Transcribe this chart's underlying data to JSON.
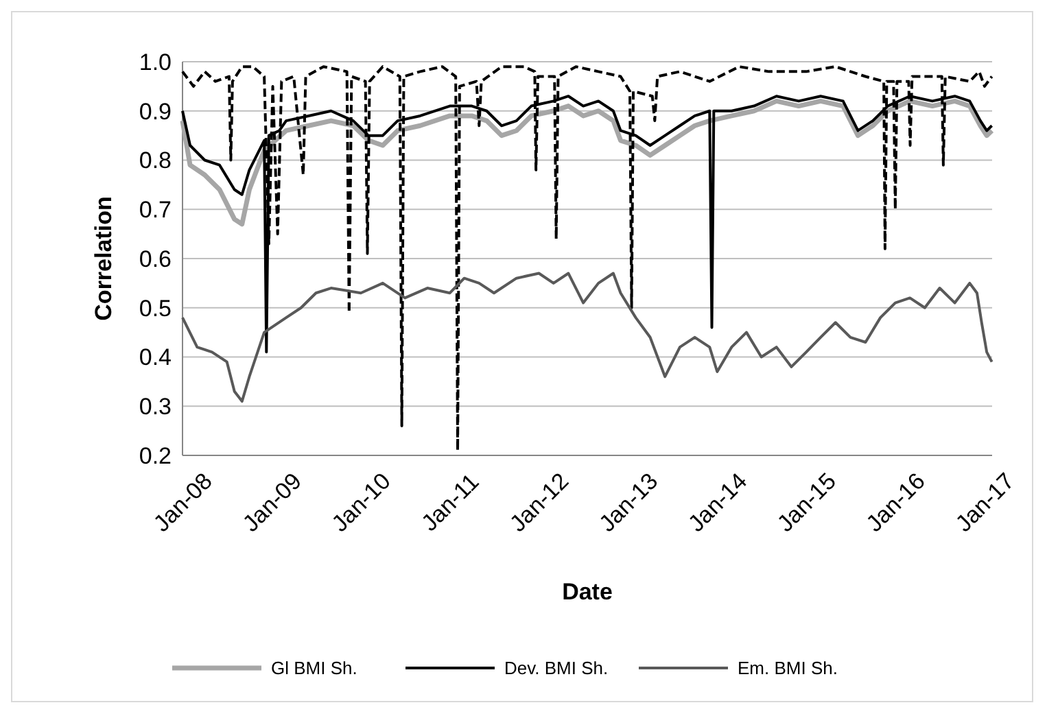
{
  "chart_data": {
    "type": "line",
    "xlabel": "Date",
    "ylabel": "Correlation",
    "xlim": [
      "2008-01-01",
      "2017-02-01"
    ],
    "ylim": [
      0.2,
      1.0
    ],
    "xticks": [
      {
        "value": "2008-01-01",
        "label": "Jan-08"
      },
      {
        "value": "2009-01-01",
        "label": "Jan-09"
      },
      {
        "value": "2010-01-01",
        "label": "Jan-10"
      },
      {
        "value": "2011-01-01",
        "label": "Jan-11"
      },
      {
        "value": "2012-01-01",
        "label": "Jan-12"
      },
      {
        "value": "2013-01-01",
        "label": "Jan-13"
      },
      {
        "value": "2014-01-01",
        "label": "Jan-14"
      },
      {
        "value": "2015-01-01",
        "label": "Jan-15"
      },
      {
        "value": "2016-01-01",
        "label": "Jan-16"
      },
      {
        "value": "2017-01-01",
        "label": "Jan-17"
      }
    ],
    "yticks": [
      {
        "value": 0.2,
        "label": "0.2"
      },
      {
        "value": 0.3,
        "label": "0.3"
      },
      {
        "value": 0.4,
        "label": "0.4"
      },
      {
        "value": 0.5,
        "label": "0.5"
      },
      {
        "value": 0.6,
        "label": "0.6"
      },
      {
        "value": 0.7,
        "label": "0.7"
      },
      {
        "value": 0.8,
        "label": "0.8"
      },
      {
        "value": 0.9,
        "label": "0.9"
      },
      {
        "value": 1.0,
        "label": "1.0"
      }
    ],
    "grid": "y",
    "legend": "bottom",
    "marker": "none",
    "series": [
      {
        "name": "Gl BMI Sh.",
        "color": "#a6a6a6",
        "line_style": "solid",
        "x": [
          "2008-01-01",
          "2008-02-01",
          "2008-04-01",
          "2008-06-01",
          "2008-08-01",
          "2008-09-01",
          "2008-10-01",
          "2008-12-01",
          "2009-03-01",
          "2009-06-01",
          "2009-09-01",
          "2009-12-01",
          "2010-02-01",
          "2010-04-01",
          "2010-06-01",
          "2010-09-01",
          "2011-01-01",
          "2011-04-01",
          "2011-06-01",
          "2011-08-01",
          "2011-10-01",
          "2011-12-01",
          "2012-03-01",
          "2012-05-01",
          "2012-07-01",
          "2012-09-01",
          "2012-11-01",
          "2012-12-01",
          "2013-02-01",
          "2013-04-01",
          "2013-06-01",
          "2013-08-01",
          "2013-10-01",
          "2013-12-01",
          "2014-03-01",
          "2014-06-01",
          "2014-09-01",
          "2014-12-01",
          "2015-03-01",
          "2015-06-01",
          "2015-08-01",
          "2015-10-01",
          "2015-12-01",
          "2016-03-01",
          "2016-06-01",
          "2016-09-01",
          "2016-11-01",
          "2016-12-15",
          "2017-01-10",
          "2017-01-31"
        ],
        "values": [
          0.88,
          0.79,
          0.77,
          0.74,
          0.68,
          0.67,
          0.74,
          0.82,
          0.86,
          0.87,
          0.88,
          0.87,
          0.84,
          0.83,
          0.86,
          0.87,
          0.89,
          0.89,
          0.88,
          0.85,
          0.86,
          0.89,
          0.9,
          0.91,
          0.89,
          0.9,
          0.88,
          0.84,
          0.83,
          0.81,
          0.83,
          0.85,
          0.87,
          0.88,
          0.89,
          0.9,
          0.92,
          0.91,
          0.92,
          0.91,
          0.85,
          0.87,
          0.9,
          0.92,
          0.91,
          0.92,
          0.91,
          0.87,
          0.85,
          0.86
        ]
      },
      {
        "color": "#000000",
        "line_style": "dashed",
        "x": [
          "2008-01-01",
          "2008-02-15",
          "2008-04-01",
          "2008-05-15",
          "2008-07-10",
          "2008-07-17",
          "2008-07-24",
          "2008-09-01",
          "2008-10-15",
          "2008-12-01",
          "2008-12-20",
          "2009-01-05",
          "2009-01-25",
          "2009-02-10",
          "2009-04-01",
          "2009-05-10",
          "2009-05-20",
          "2009-08-01",
          "2009-11-05",
          "2009-11-14",
          "2009-11-24",
          "2010-01-20",
          "2010-01-28",
          "2010-02-06",
          "2010-04-01",
          "2010-06-10",
          "2010-06-18",
          "2010-06-26",
          "2010-09-01",
          "2010-12-01",
          "2011-01-25",
          "2011-02-02",
          "2011-02-10",
          "2011-04-20",
          "2011-05-01",
          "2011-05-10",
          "2011-08-01",
          "2011-11-01",
          "2011-12-15",
          "2011-12-20",
          "2011-12-28",
          "2012-03-05",
          "2012-03-12",
          "2012-03-20",
          "2012-06-01",
          "2012-09-01",
          "2012-12-01",
          "2013-01-08",
          "2013-01-15",
          "2013-01-22",
          "2013-04-10",
          "2013-04-20",
          "2013-05-01",
          "2013-08-01",
          "2013-12-01",
          "2014-04-01",
          "2014-08-01",
          "2015-01-01",
          "2015-05-01",
          "2015-09-01",
          "2015-11-15",
          "2015-11-20",
          "2015-11-27",
          "2015-12-25",
          "2016-01-01",
          "2016-01-08",
          "2016-02-25",
          "2016-03-02",
          "2016-03-10",
          "2016-07-10",
          "2016-07-16",
          "2016-07-24",
          "2016-11-01",
          "2016-12-10",
          "2017-01-01",
          "2017-01-31"
        ],
        "values": [
          0.98,
          0.95,
          0.98,
          0.96,
          0.97,
          0.8,
          0.96,
          0.99,
          0.99,
          0.97,
          0.63,
          0.95,
          0.65,
          0.96,
          0.97,
          0.77,
          0.97,
          0.99,
          0.98,
          0.49,
          0.97,
          0.96,
          0.61,
          0.96,
          0.99,
          0.97,
          0.26,
          0.97,
          0.98,
          0.99,
          0.97,
          0.21,
          0.95,
          0.96,
          0.87,
          0.96,
          0.99,
          0.99,
          0.98,
          0.78,
          0.97,
          0.97,
          0.64,
          0.97,
          0.99,
          0.98,
          0.97,
          0.94,
          0.5,
          0.94,
          0.93,
          0.88,
          0.97,
          0.98,
          0.96,
          0.99,
          0.98,
          0.98,
          0.99,
          0.97,
          0.96,
          0.62,
          0.96,
          0.96,
          0.7,
          0.96,
          0.96,
          0.83,
          0.97,
          0.97,
          0.79,
          0.97,
          0.96,
          0.98,
          0.95,
          0.97
        ]
      },
      {
        "name": "Dev. BMI Sh.",
        "color": "#000000",
        "line_style": "solid",
        "x": [
          "2008-01-01",
          "2008-02-01",
          "2008-04-01",
          "2008-06-01",
          "2008-08-01",
          "2008-09-01",
          "2008-10-01",
          "2008-12-01",
          "2008-12-10",
          "2008-12-20",
          "2009-02-01",
          "2009-03-01",
          "2009-06-01",
          "2009-09-01",
          "2009-12-01",
          "2010-02-01",
          "2010-04-01",
          "2010-06-01",
          "2010-09-01",
          "2011-01-01",
          "2011-04-01",
          "2011-06-01",
          "2011-08-01",
          "2011-10-01",
          "2011-12-01",
          "2012-03-01",
          "2012-05-01",
          "2012-07-01",
          "2012-09-01",
          "2012-11-01",
          "2012-12-01",
          "2013-02-01",
          "2013-04-01",
          "2013-06-01",
          "2013-08-01",
          "2013-10-01",
          "2013-12-01",
          "2013-12-10",
          "2013-12-18",
          "2014-03-01",
          "2014-06-01",
          "2014-09-01",
          "2014-12-01",
          "2015-03-01",
          "2015-06-01",
          "2015-08-01",
          "2015-10-01",
          "2015-12-01",
          "2016-03-01",
          "2016-06-01",
          "2016-09-01",
          "2016-11-01",
          "2016-12-15",
          "2017-01-10",
          "2017-01-31"
        ],
        "values": [
          0.9,
          0.83,
          0.8,
          0.79,
          0.74,
          0.73,
          0.78,
          0.84,
          0.41,
          0.85,
          0.86,
          0.88,
          0.89,
          0.9,
          0.88,
          0.85,
          0.85,
          0.88,
          0.89,
          0.91,
          0.91,
          0.9,
          0.87,
          0.88,
          0.91,
          0.92,
          0.93,
          0.91,
          0.92,
          0.9,
          0.86,
          0.85,
          0.83,
          0.85,
          0.87,
          0.89,
          0.9,
          0.46,
          0.9,
          0.9,
          0.91,
          0.93,
          0.92,
          0.93,
          0.92,
          0.86,
          0.88,
          0.91,
          0.93,
          0.92,
          0.93,
          0.92,
          0.88,
          0.86,
          0.87
        ]
      },
      {
        "name": "Em. BMI Sh.",
        "color": "#595959",
        "line_style": "solid",
        "x": [
          "2008-01-01",
          "2008-03-01",
          "2008-05-01",
          "2008-07-01",
          "2008-08-01",
          "2008-09-01",
          "2008-10-01",
          "2008-12-01",
          "2009-03-01",
          "2009-05-01",
          "2009-07-01",
          "2009-09-01",
          "2010-01-01",
          "2010-04-01",
          "2010-07-01",
          "2010-10-01",
          "2011-01-01",
          "2011-03-01",
          "2011-05-01",
          "2011-07-01",
          "2011-10-01",
          "2012-01-01",
          "2012-03-01",
          "2012-05-01",
          "2012-07-01",
          "2012-09-01",
          "2012-11-01",
          "2012-12-01",
          "2013-02-01",
          "2013-04-01",
          "2013-06-01",
          "2013-08-01",
          "2013-10-01",
          "2013-12-01",
          "2014-01-01",
          "2014-03-01",
          "2014-05-01",
          "2014-07-01",
          "2014-09-01",
          "2014-11-01",
          "2015-01-01",
          "2015-03-01",
          "2015-05-01",
          "2015-07-01",
          "2015-09-01",
          "2015-11-01",
          "2016-01-01",
          "2016-03-01",
          "2016-05-01",
          "2016-07-01",
          "2016-09-01",
          "2016-11-01",
          "2016-12-01",
          "2016-12-20",
          "2017-01-10",
          "2017-01-31"
        ],
        "values": [
          0.48,
          0.42,
          0.41,
          0.39,
          0.33,
          0.31,
          0.36,
          0.45,
          0.48,
          0.5,
          0.53,
          0.54,
          0.53,
          0.55,
          0.52,
          0.54,
          0.53,
          0.56,
          0.55,
          0.53,
          0.56,
          0.57,
          0.55,
          0.57,
          0.51,
          0.55,
          0.57,
          0.53,
          0.48,
          0.44,
          0.36,
          0.42,
          0.44,
          0.42,
          0.37,
          0.42,
          0.45,
          0.4,
          0.42,
          0.38,
          0.41,
          0.44,
          0.47,
          0.44,
          0.43,
          0.48,
          0.51,
          0.52,
          0.5,
          0.54,
          0.51,
          0.55,
          0.53,
          0.47,
          0.41,
          0.39
        ]
      }
    ]
  }
}
